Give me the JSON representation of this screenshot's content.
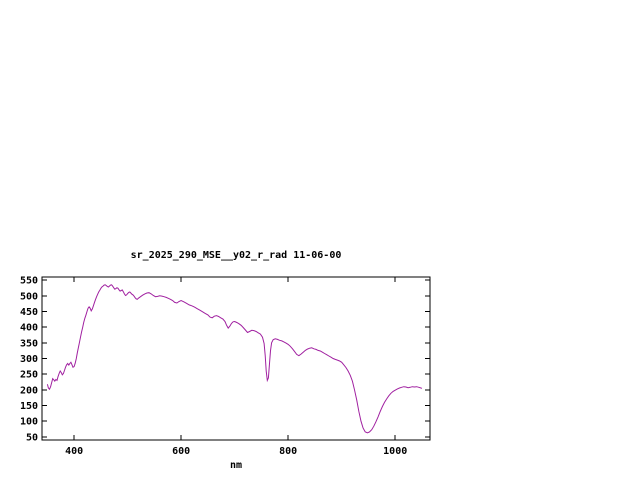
{
  "chart_data": {
    "type": "line",
    "title": "sr_2025_290_MSE__y02_r_rad 11-06-00",
    "xlabel": "nm",
    "ylabel": "",
    "xlim": [
      340,
      1065
    ],
    "ylim": [
      40,
      560
    ],
    "xticks": [
      400,
      600,
      800,
      1000
    ],
    "yticks": [
      50,
      100,
      150,
      200,
      250,
      300,
      350,
      400,
      450,
      500,
      550
    ],
    "grid": false,
    "legend": "none",
    "axis_color": "#000000",
    "line_color": "#a020a0",
    "series": [
      {
        "points": [
          [
            350,
            218
          ],
          [
            352,
            206
          ],
          [
            354,
            202
          ],
          [
            356,
            210
          ],
          [
            358,
            222
          ],
          [
            360,
            236
          ],
          [
            362,
            232
          ],
          [
            364,
            228
          ],
          [
            366,
            233
          ],
          [
            368,
            230
          ],
          [
            370,
            243
          ],
          [
            372,
            252
          ],
          [
            374,
            260
          ],
          [
            376,
            255
          ],
          [
            378,
            248
          ],
          [
            380,
            252
          ],
          [
            382,
            262
          ],
          [
            384,
            272
          ],
          [
            386,
            280
          ],
          [
            388,
            284
          ],
          [
            390,
            279
          ],
          [
            392,
            284
          ],
          [
            394,
            288
          ],
          [
            396,
            280
          ],
          [
            398,
            272
          ],
          [
            400,
            274
          ],
          [
            402,
            285
          ],
          [
            404,
            300
          ],
          [
            406,
            318
          ],
          [
            408,
            335
          ],
          [
            410,
            352
          ],
          [
            412,
            368
          ],
          [
            414,
            385
          ],
          [
            416,
            400
          ],
          [
            418,
            415
          ],
          [
            420,
            428
          ],
          [
            422,
            438
          ],
          [
            424,
            450
          ],
          [
            426,
            460
          ],
          [
            428,
            465
          ],
          [
            430,
            460
          ],
          [
            432,
            452
          ],
          [
            434,
            458
          ],
          [
            436,
            468
          ],
          [
            438,
            478
          ],
          [
            440,
            488
          ],
          [
            442,
            497
          ],
          [
            444,
            505
          ],
          [
            446,
            512
          ],
          [
            448,
            518
          ],
          [
            450,
            524
          ],
          [
            452,
            528
          ],
          [
            454,
            531
          ],
          [
            456,
            534
          ],
          [
            458,
            535
          ],
          [
            460,
            533
          ],
          [
            462,
            530
          ],
          [
            464,
            528
          ],
          [
            466,
            531
          ],
          [
            468,
            534
          ],
          [
            470,
            535
          ],
          [
            472,
            531
          ],
          [
            474,
            526
          ],
          [
            476,
            521
          ],
          [
            478,
            523
          ],
          [
            480,
            526
          ],
          [
            482,
            524
          ],
          [
            484,
            519
          ],
          [
            486,
            515
          ],
          [
            488,
            517
          ],
          [
            490,
            519
          ],
          [
            492,
            513
          ],
          [
            494,
            506
          ],
          [
            496,
            501
          ],
          [
            498,
            503
          ],
          [
            500,
            507
          ],
          [
            502,
            511
          ],
          [
            504,
            512
          ],
          [
            506,
            509
          ],
          [
            508,
            505
          ],
          [
            510,
            503
          ],
          [
            512,
            499
          ],
          [
            514,
            494
          ],
          [
            516,
            490
          ],
          [
            518,
            489
          ],
          [
            520,
            492
          ],
          [
            524,
            497
          ],
          [
            528,
            502
          ],
          [
            532,
            506
          ],
          [
            536,
            509
          ],
          [
            540,
            510
          ],
          [
            544,
            506
          ],
          [
            548,
            501
          ],
          [
            552,
            497
          ],
          [
            556,
            498
          ],
          [
            560,
            500
          ],
          [
            564,
            499
          ],
          [
            568,
            497
          ],
          [
            572,
            495
          ],
          [
            576,
            492
          ],
          [
            580,
            489
          ],
          [
            584,
            485
          ],
          [
            588,
            479
          ],
          [
            592,
            477
          ],
          [
            596,
            482
          ],
          [
            600,
            485
          ],
          [
            605,
            481
          ],
          [
            610,
            476
          ],
          [
            615,
            471
          ],
          [
            620,
            468
          ],
          [
            625,
            464
          ],
          [
            630,
            459
          ],
          [
            635,
            454
          ],
          [
            640,
            449
          ],
          [
            645,
            444
          ],
          [
            650,
            439
          ],
          [
            654,
            432
          ],
          [
            658,
            430
          ],
          [
            662,
            435
          ],
          [
            666,
            437
          ],
          [
            670,
            434
          ],
          [
            674,
            430
          ],
          [
            678,
            426
          ],
          [
            682,
            418
          ],
          [
            685,
            406
          ],
          [
            688,
            397
          ],
          [
            691,
            403
          ],
          [
            694,
            412
          ],
          [
            697,
            417
          ],
          [
            700,
            418
          ],
          [
            704,
            415
          ],
          [
            708,
            411
          ],
          [
            712,
            406
          ],
          [
            716,
            399
          ],
          [
            720,
            391
          ],
          [
            724,
            383
          ],
          [
            728,
            386
          ],
          [
            732,
            390
          ],
          [
            736,
            389
          ],
          [
            740,
            386
          ],
          [
            744,
            382
          ],
          [
            748,
            378
          ],
          [
            752,
            368
          ],
          [
            755,
            348
          ],
          [
            757,
            310
          ],
          [
            759,
            260
          ],
          [
            761,
            230
          ],
          [
            763,
            238
          ],
          [
            765,
            280
          ],
          [
            767,
            325
          ],
          [
            769,
            350
          ],
          [
            772,
            360
          ],
          [
            776,
            363
          ],
          [
            780,
            361
          ],
          [
            784,
            358
          ],
          [
            788,
            356
          ],
          [
            792,
            353
          ],
          [
            796,
            349
          ],
          [
            800,
            345
          ],
          [
            804,
            339
          ],
          [
            808,
            331
          ],
          [
            812,
            322
          ],
          [
            816,
            313
          ],
          [
            820,
            309
          ],
          [
            824,
            314
          ],
          [
            828,
            320
          ],
          [
            832,
            326
          ],
          [
            836,
            330
          ],
          [
            840,
            333
          ],
          [
            844,
            334
          ],
          [
            848,
            331
          ],
          [
            852,
            329
          ],
          [
            856,
            326
          ],
          [
            860,
            324
          ],
          [
            864,
            320
          ],
          [
            868,
            316
          ],
          [
            872,
            312
          ],
          [
            876,
            308
          ],
          [
            880,
            304
          ],
          [
            884,
            300
          ],
          [
            888,
            297
          ],
          [
            892,
            295
          ],
          [
            896,
            292
          ],
          [
            900,
            288
          ],
          [
            904,
            280
          ],
          [
            908,
            271
          ],
          [
            912,
            260
          ],
          [
            916,
            246
          ],
          [
            920,
            228
          ],
          [
            924,
            200
          ],
          [
            928,
            168
          ],
          [
            932,
            132
          ],
          [
            936,
            100
          ],
          [
            940,
            78
          ],
          [
            944,
            66
          ],
          [
            948,
            63
          ],
          [
            952,
            66
          ],
          [
            956,
            73
          ],
          [
            960,
            84
          ],
          [
            964,
            98
          ],
          [
            968,
            114
          ],
          [
            972,
            131
          ],
          [
            976,
            147
          ],
          [
            980,
            160
          ],
          [
            984,
            171
          ],
          [
            988,
            181
          ],
          [
            992,
            189
          ],
          [
            996,
            195
          ],
          [
            1000,
            199
          ],
          [
            1004,
            203
          ],
          [
            1008,
            206
          ],
          [
            1012,
            208
          ],
          [
            1016,
            210
          ],
          [
            1020,
            209
          ],
          [
            1024,
            207
          ],
          [
            1028,
            208
          ],
          [
            1032,
            210
          ],
          [
            1036,
            209
          ],
          [
            1040,
            210
          ],
          [
            1044,
            208
          ],
          [
            1048,
            206
          ],
          [
            1050,
            205
          ]
        ]
      }
    ]
  }
}
